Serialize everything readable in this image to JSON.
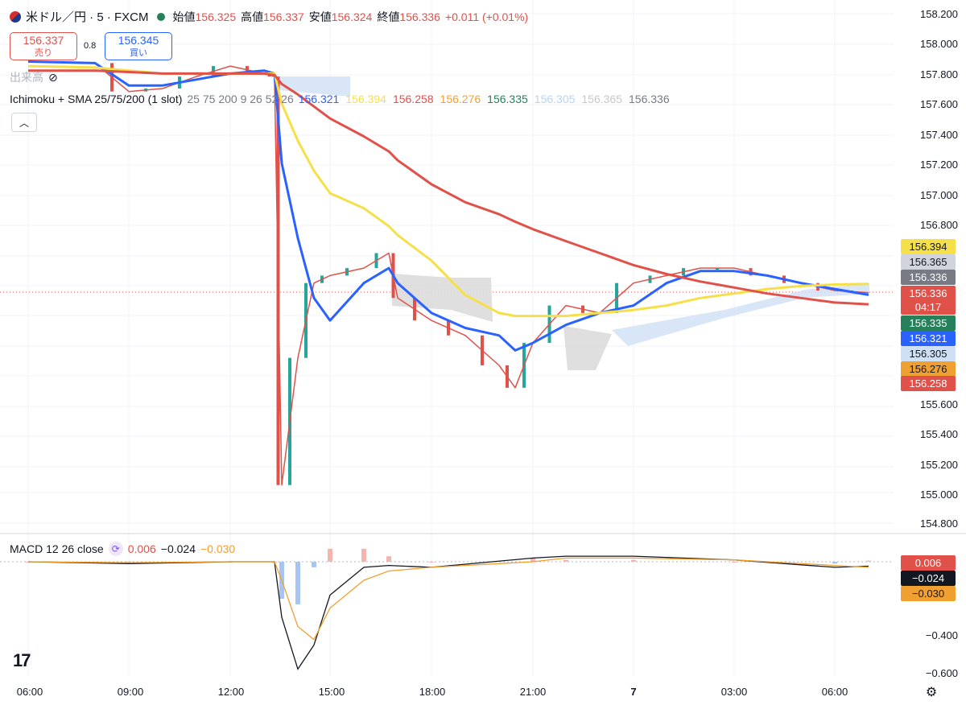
{
  "header": {
    "symbol": "米ドル／円 · 5 · FXCM",
    "open_label": "始値",
    "open_value": "156.325",
    "high_label": "高値",
    "high_value": "156.337",
    "low_label": "安値",
    "low_value": "156.324",
    "close_label": "終値",
    "close_value": "156.336",
    "change": "+0.011 (+0.01%)"
  },
  "quotes": {
    "sell_price": "156.337",
    "sell_label": "売り",
    "spread": "0.8",
    "buy_price": "156.345",
    "buy_label": "買い"
  },
  "indicators": {
    "volume_label": "出来高",
    "ichimoku_label": "Ichimoku + SMA 25/75/200 (1 slot)",
    "ichimoku_params": "25 75 200 9 26 52 26",
    "ichimoku_values": [
      {
        "value": "156.321",
        "color": "#2962ff"
      },
      {
        "value": "156.394",
        "color": "#f5e04a"
      },
      {
        "value": "156.258",
        "color": "#e0514a"
      },
      {
        "value": "156.276",
        "color": "#f0a030"
      },
      {
        "value": "156.335",
        "color": "#26805a"
      },
      {
        "value": "156.305",
        "color": "#b8d4f0"
      },
      {
        "value": "156.365",
        "color": "#c8c8c8"
      },
      {
        "value": "156.336",
        "color": "#787b86"
      }
    ],
    "macd_label": "MACD 12 26 close",
    "macd_values": [
      {
        "value": "0.006",
        "color": "#e0514a"
      },
      {
        "value": "−0.024",
        "color": "#131722"
      },
      {
        "value": "−0.030",
        "color": "#f0a030"
      }
    ]
  },
  "price_axis": {
    "labels": [
      "158.200",
      "158.000",
      "157.800",
      "157.600",
      "157.400",
      "157.200",
      "157.000",
      "156.800",
      "155.600",
      "155.400",
      "155.200",
      "155.000",
      "154.800"
    ],
    "tags": [
      {
        "value": "156.394",
        "bg": "#f5e04a",
        "fg": "#131722"
      },
      {
        "value": "156.365",
        "bg": "#d1d4dc",
        "fg": "#131722"
      },
      {
        "value": "156.336",
        "bg": "#787b86",
        "fg": "#ffffff"
      },
      {
        "value": "156.336",
        "bg": "#e0514a",
        "fg": "#ffffff"
      },
      {
        "value": "04:17",
        "bg": "#e0514a",
        "fg": "#ffffff"
      },
      {
        "value": "156.335",
        "bg": "#26805a",
        "fg": "#ffffff"
      },
      {
        "value": "156.321",
        "bg": "#2962ff",
        "fg": "#ffffff"
      },
      {
        "value": "156.305",
        "bg": "#cfe0f5",
        "fg": "#131722"
      },
      {
        "value": "156.276",
        "bg": "#f0a030",
        "fg": "#131722"
      },
      {
        "value": "156.258",
        "bg": "#e0514a",
        "fg": "#ffffff"
      }
    ]
  },
  "macd_axis": {
    "labels": [
      "−0.400",
      "−0.600"
    ],
    "tags": [
      {
        "value": "0.006",
        "bg": "#e0514a",
        "fg": "#ffffff"
      },
      {
        "value": "−0.024",
        "bg": "#131722",
        "fg": "#ffffff"
      },
      {
        "value": "−0.030",
        "bg": "#f0a030",
        "fg": "#131722"
      }
    ]
  },
  "time_axis": {
    "labels": [
      "06:00",
      "09:00",
      "12:00",
      "15:00",
      "18:00",
      "21:00",
      "7",
      "03:00",
      "06:00"
    ]
  },
  "icons": {
    "flag": "us-jp-flag-icon",
    "status": "market-status-dot-icon",
    "eye": "visibility-off-icon",
    "collapse": "chevron-up-icon",
    "logo": "tradingview-logo-icon",
    "settings": "gear-icon"
  },
  "chart_data": [
    {
      "type": "line",
      "title": "米ドル／円 · 5 · FXCM",
      "xlabel": "",
      "ylabel": "",
      "ylim": [
        154.7,
        158.25
      ],
      "x": [
        "06:00",
        "08:00",
        "09:00",
        "10:00",
        "11:00",
        "12:00",
        "13:00",
        "13:30",
        "13:45",
        "14:00",
        "14:30",
        "15:00",
        "16:00",
        "16:45",
        "17:00",
        "18:00",
        "19:00",
        "20:00",
        "20:30",
        "21:00",
        "22:00",
        "23:00",
        "00:00",
        "01:00",
        "02:00",
        "03:00",
        "04:00",
        "05:00",
        "06:00",
        "07:00"
      ],
      "series": [
        {
          "values": [
            157.88,
            157.87,
            157.68,
            157.7,
            157.78,
            157.85,
            157.8,
            157.78,
            155.05,
            155.9,
            156.4,
            156.45,
            156.5,
            156.6,
            156.3,
            156.15,
            156.05,
            155.85,
            155.7,
            156.0,
            156.25,
            156.2,
            156.4,
            156.45,
            156.5,
            156.5,
            156.45,
            156.4,
            156.35,
            156.336
          ]
        },
        {
          "name": "SMA 25",
          "values": [
            157.88,
            157.87,
            157.72,
            157.72,
            157.76,
            157.8,
            157.82,
            157.8,
            157.2,
            156.7,
            156.3,
            156.15,
            156.4,
            156.5,
            156.4,
            156.2,
            156.1,
            156.05,
            155.95,
            156.0,
            156.12,
            156.2,
            156.25,
            156.4,
            156.48,
            156.48,
            156.45,
            156.4,
            156.36,
            156.321
          ]
        },
        {
          "name": "SMA 75",
          "values": [
            157.85,
            157.84,
            157.82,
            157.8,
            157.8,
            157.8,
            157.8,
            157.8,
            157.6,
            157.35,
            157.15,
            157.0,
            156.9,
            156.78,
            156.72,
            156.55,
            156.32,
            156.2,
            156.18,
            156.18,
            156.18,
            156.2,
            156.22,
            156.25,
            156.3,
            156.33,
            156.36,
            156.38,
            156.39,
            156.394
          ]
        },
        {
          "name": "SMA 200",
          "values": [
            157.82,
            157.82,
            157.81,
            157.8,
            157.8,
            157.8,
            157.8,
            157.79,
            157.73,
            157.66,
            157.58,
            157.5,
            157.38,
            157.28,
            157.22,
            157.06,
            156.94,
            156.86,
            156.81,
            156.76,
            156.68,
            156.6,
            156.52,
            156.46,
            156.41,
            156.37,
            156.33,
            156.3,
            156.27,
            156.258
          ]
        }
      ]
    },
    {
      "type": "line",
      "title": "MACD 12 26 close",
      "xlabel": "",
      "ylabel": "",
      "ylim": [
        -0.62,
        0.05
      ],
      "x": [
        "06:00",
        "09:00",
        "12:00",
        "13:30",
        "13:45",
        "14:00",
        "14:30",
        "15:00",
        "16:00",
        "16:45",
        "18:00",
        "21:00",
        "22:00",
        "00:00",
        "03:00",
        "06:00",
        "07:00"
      ],
      "series": [
        {
          "name": "MACD",
          "values": [
            0.0,
            -0.01,
            0.0,
            0.0,
            -0.3,
            -0.58,
            -0.45,
            -0.18,
            -0.03,
            -0.02,
            -0.03,
            0.02,
            0.03,
            0.03,
            0.01,
            -0.03,
            -0.024
          ]
        },
        {
          "name": "Signal",
          "values": [
            0.0,
            -0.005,
            0.0,
            0.0,
            -0.1,
            -0.35,
            -0.42,
            -0.25,
            -0.1,
            -0.05,
            -0.03,
            0.0,
            0.02,
            0.02,
            0.01,
            -0.02,
            -0.03
          ]
        }
      ],
      "histogram": [
        0.0,
        -0.01,
        0.0,
        0.0,
        -0.2,
        -0.23,
        -0.03,
        0.07,
        0.07,
        0.03,
        0.0,
        0.02,
        0.01,
        0.01,
        0.0,
        -0.01,
        0.006
      ]
    }
  ]
}
